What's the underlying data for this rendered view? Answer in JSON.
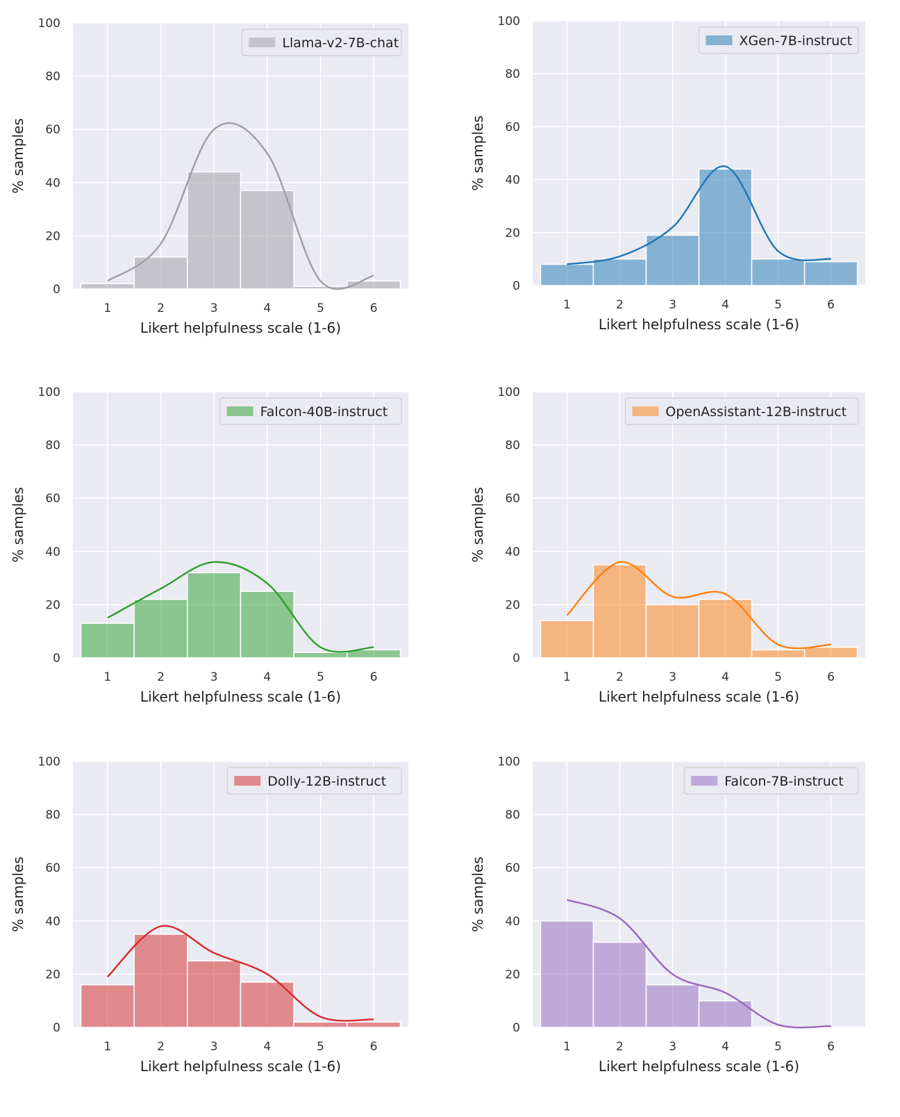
{
  "chart_data": [
    {
      "type": "bar",
      "xlabel": "Likert helpfulness scale (1-6)",
      "ylabel": "% samples",
      "categories": [
        "1",
        "2",
        "3",
        "4",
        "5",
        "6"
      ],
      "ylim": [
        0,
        100
      ],
      "yticks": [
        "0",
        "20",
        "40",
        "60",
        "80",
        "100"
      ],
      "grid": true,
      "legend_position": "top-right",
      "series": [
        {
          "name": "Llama-v2-7B-chat",
          "color": "#9e9ea2",
          "values": [
            2,
            12,
            44,
            37,
            1,
            3
          ],
          "kde": [
            3,
            17,
            60,
            51,
            3,
            5
          ]
        }
      ]
    },
    {
      "type": "bar",
      "xlabel": "Likert helpfulness scale (1-6)",
      "ylabel": "% samples",
      "categories": [
        "1",
        "2",
        "3",
        "4",
        "5",
        "6"
      ],
      "ylim": [
        0,
        100
      ],
      "yticks": [
        "0",
        "20",
        "40",
        "60",
        "80",
        "100"
      ],
      "grid": true,
      "legend_position": "top-right",
      "series": [
        {
          "name": "XGen-7B-instruct",
          "color": "#1f77b4",
          "values": [
            8,
            10,
            19,
            44,
            10,
            9
          ],
          "kde": [
            8,
            11,
            22,
            45,
            13,
            10
          ]
        }
      ]
    },
    {
      "type": "bar",
      "xlabel": "Likert helpfulness scale (1-6)",
      "ylabel": "% samples",
      "categories": [
        "1",
        "2",
        "3",
        "4",
        "5",
        "6"
      ],
      "ylim": [
        0,
        100
      ],
      "yticks": [
        "0",
        "20",
        "40",
        "60",
        "80",
        "100"
      ],
      "grid": true,
      "legend_position": "top-right",
      "series": [
        {
          "name": "Falcon-40B-instruct",
          "color": "#2ca02c",
          "values": [
            13,
            22,
            32,
            25,
            2,
            3
          ],
          "kde": [
            15,
            26,
            36,
            28,
            4,
            4
          ]
        }
      ]
    },
    {
      "type": "bar",
      "xlabel": "Likert helpfulness scale (1-6)",
      "ylabel": "% samples",
      "categories": [
        "1",
        "2",
        "3",
        "4",
        "5",
        "6"
      ],
      "ylim": [
        0,
        100
      ],
      "yticks": [
        "0",
        "20",
        "40",
        "60",
        "80",
        "100"
      ],
      "grid": true,
      "legend_position": "top-right",
      "series": [
        {
          "name": "OpenAssistant-12B-instruct",
          "color": "#ff7f0e",
          "values": [
            14,
            35,
            20,
            22,
            3,
            4
          ],
          "kde": [
            16,
            36,
            23,
            24,
            5,
            5
          ]
        }
      ]
    },
    {
      "type": "bar",
      "xlabel": "Likert helpfulness scale (1-6)",
      "ylabel": "% samples",
      "categories": [
        "1",
        "2",
        "3",
        "4",
        "5",
        "6"
      ],
      "ylim": [
        0,
        100
      ],
      "yticks": [
        "0",
        "20",
        "40",
        "60",
        "80",
        "100"
      ],
      "grid": true,
      "legend_position": "top-right",
      "series": [
        {
          "name": "Dolly-12B-instruct",
          "color": "#d62728",
          "values": [
            16,
            35,
            25,
            17,
            2,
            2
          ],
          "kde": [
            19,
            38,
            28,
            20,
            4,
            3
          ]
        }
      ]
    },
    {
      "type": "bar",
      "xlabel": "Likert helpfulness scale (1-6)",
      "ylabel": "% samples",
      "categories": [
        "1",
        "2",
        "3",
        "4",
        "5",
        "6"
      ],
      "ylim": [
        0,
        100
      ],
      "yticks": [
        "0",
        "20",
        "40",
        "60",
        "80",
        "100"
      ],
      "grid": true,
      "legend_position": "top-right",
      "series": [
        {
          "name": "Falcon-7B-instruct",
          "color": "#9467bd",
          "values": [
            40,
            32,
            16,
            10,
            0,
            0
          ],
          "kde": [
            48,
            41,
            20,
            13,
            1,
            0.5
          ]
        }
      ]
    }
  ]
}
